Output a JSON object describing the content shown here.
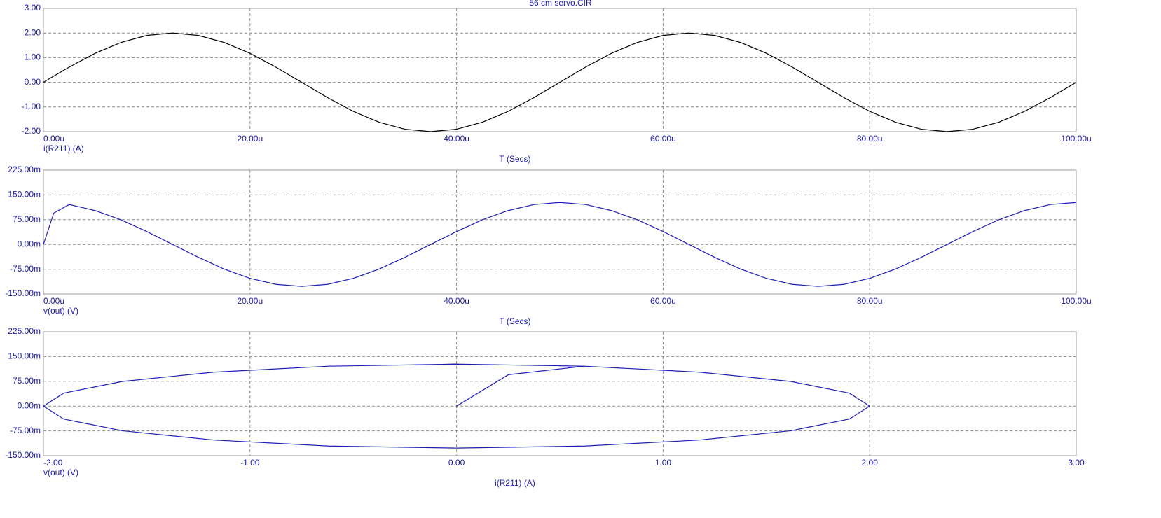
{
  "chart_data": [
    {
      "type": "line",
      "title": "56 cm servo.CIR",
      "x_label": "T (Secs)",
      "y_label": "i(R211) (A)",
      "color": "#000000",
      "grid": true,
      "x": [
        0,
        1,
        2.5,
        5,
        7.5,
        10,
        12.5,
        15,
        17.5,
        20,
        22.5,
        25,
        27.5,
        30,
        32.5,
        35,
        37.5,
        40,
        42.5,
        45,
        47.5,
        50,
        52.5,
        55,
        57.5,
        60,
        62.5,
        65,
        67.5,
        70,
        72.5,
        75,
        77.5,
        80,
        82.5,
        85,
        87.5,
        90,
        92.5,
        95,
        97.5,
        100
      ],
      "values": [
        0,
        0.251,
        0.618,
        1.176,
        1.618,
        1.902,
        2,
        1.902,
        1.618,
        1.176,
        0.618,
        0,
        -0.618,
        -1.176,
        -1.618,
        -1.902,
        -2,
        -1.902,
        -1.618,
        -1.176,
        -0.618,
        0,
        0.618,
        1.176,
        1.618,
        1.902,
        2,
        1.902,
        1.618,
        1.176,
        0.618,
        0,
        -0.618,
        -1.176,
        -1.618,
        -1.902,
        -2,
        -1.902,
        -1.618,
        -1.176,
        -0.618,
        0
      ],
      "xlim": [
        0,
        100
      ],
      "xticks": [
        {
          "value": 0,
          "label": "0.00u"
        },
        {
          "value": 20,
          "label": "20.00u"
        },
        {
          "value": 40,
          "label": "40.00u"
        },
        {
          "value": 60,
          "label": "60.00u"
        },
        {
          "value": 80,
          "label": "80.00u"
        },
        {
          "value": 100,
          "label": "100.00u"
        }
      ],
      "ylim": [
        -2,
        3
      ],
      "yticks": [
        {
          "value": 3,
          "label": "3.00"
        },
        {
          "value": 2,
          "label": "2.00"
        },
        {
          "value": 1,
          "label": "1.00"
        },
        {
          "value": 0,
          "label": "0.00"
        },
        {
          "value": -1,
          "label": "-1.00"
        },
        {
          "value": -2,
          "label": "-2.00"
        }
      ]
    },
    {
      "type": "line",
      "x_label": "T (Secs)",
      "y_label": "v(out) (V)",
      "color": "#1f1fb4",
      "grid": true,
      "x": [
        0,
        1,
        2.5,
        5,
        7.5,
        10,
        12.5,
        15,
        17.5,
        20,
        22.5,
        25,
        27.5,
        30,
        32.5,
        35,
        37.5,
        40,
        42.5,
        45,
        47.5,
        50,
        52.5,
        55,
        57.5,
        60,
        62.5,
        65,
        67.5,
        70,
        72.5,
        75,
        77.5,
        80,
        82.5,
        85,
        87.5,
        90,
        92.5,
        95,
        97.5,
        100
      ],
      "values": [
        0,
        95,
        120.8,
        102.7,
        74.6,
        39.2,
        0,
        -39.2,
        -74.6,
        -102.7,
        -120.8,
        -127,
        -120.8,
        -102.7,
        -74.6,
        -39.2,
        0,
        39.2,
        74.6,
        102.7,
        120.8,
        127,
        120.8,
        102.7,
        74.6,
        39.2,
        0,
        -39.2,
        -74.6,
        -102.7,
        -120.8,
        -127,
        -120.8,
        -102.7,
        -74.6,
        -39.2,
        0,
        39.2,
        74.6,
        102.7,
        120.8,
        127
      ],
      "xlim": [
        0,
        100
      ],
      "xticks": [
        {
          "value": 0,
          "label": "0.00u"
        },
        {
          "value": 20,
          "label": "20.00u"
        },
        {
          "value": 40,
          "label": "40.00u"
        },
        {
          "value": 60,
          "label": "60.00u"
        },
        {
          "value": 80,
          "label": "80.00u"
        },
        {
          "value": 100,
          "label": "100.00u"
        }
      ],
      "ylim": [
        -150,
        225
      ],
      "yticks": [
        {
          "value": 225,
          "label": "225.00m"
        },
        {
          "value": 150,
          "label": "150.00m"
        },
        {
          "value": 75,
          "label": "75.00m"
        },
        {
          "value": 0,
          "label": "0.00m"
        },
        {
          "value": -75,
          "label": "-75.00m"
        },
        {
          "value": -150,
          "label": "-150.00m"
        }
      ]
    },
    {
      "type": "line",
      "x_label": "i(R211) (A)",
      "y_label": "v(out) (V)",
      "color": "#1f1fb4",
      "grid": true,
      "x": [
        0,
        0.251,
        0.618,
        1.176,
        1.618,
        1.902,
        2,
        1.902,
        1.618,
        1.176,
        0.618,
        0,
        -0.618,
        -1.176,
        -1.618,
        -1.902,
        -2,
        -1.902,
        -1.618,
        -1.176,
        -0.618,
        0,
        0.618,
        1.176,
        1.618,
        1.902,
        2,
        1.902,
        1.618,
        1.176,
        0.618,
        0,
        -0.618,
        -1.176,
        -1.618,
        -1.902,
        -2,
        -1.902,
        -1.618,
        -1.176,
        -0.618,
        0
      ],
      "values": [
        0,
        95,
        120.8,
        102.7,
        74.6,
        39.2,
        0,
        -39.2,
        -74.6,
        -102.7,
        -120.8,
        -127,
        -120.8,
        -102.7,
        -74.6,
        -39.2,
        0,
        39.2,
        74.6,
        102.7,
        120.8,
        127,
        120.8,
        102.7,
        74.6,
        39.2,
        0,
        -39.2,
        -74.6,
        -102.7,
        -120.8,
        -127,
        -120.8,
        -102.7,
        -74.6,
        -39.2,
        0,
        39.2,
        74.6,
        102.7,
        120.8,
        127
      ],
      "xlim": [
        -2,
        3
      ],
      "xticks": [
        {
          "value": -2,
          "label": "-2.00"
        },
        {
          "value": -1,
          "label": "-1.00"
        },
        {
          "value": 0,
          "label": "0.00"
        },
        {
          "value": 1,
          "label": "1.00"
        },
        {
          "value": 2,
          "label": "2.00"
        },
        {
          "value": 3,
          "label": "3.00"
        }
      ],
      "ylim": [
        -150,
        225
      ],
      "yticks": [
        {
          "value": 225,
          "label": "225.00m"
        },
        {
          "value": 150,
          "label": "150.00m"
        },
        {
          "value": 75,
          "label": "75.00m"
        },
        {
          "value": 0,
          "label": "0.00m"
        },
        {
          "value": -75,
          "label": "-75.00m"
        },
        {
          "value": -150,
          "label": "-150.00m"
        }
      ]
    }
  ]
}
